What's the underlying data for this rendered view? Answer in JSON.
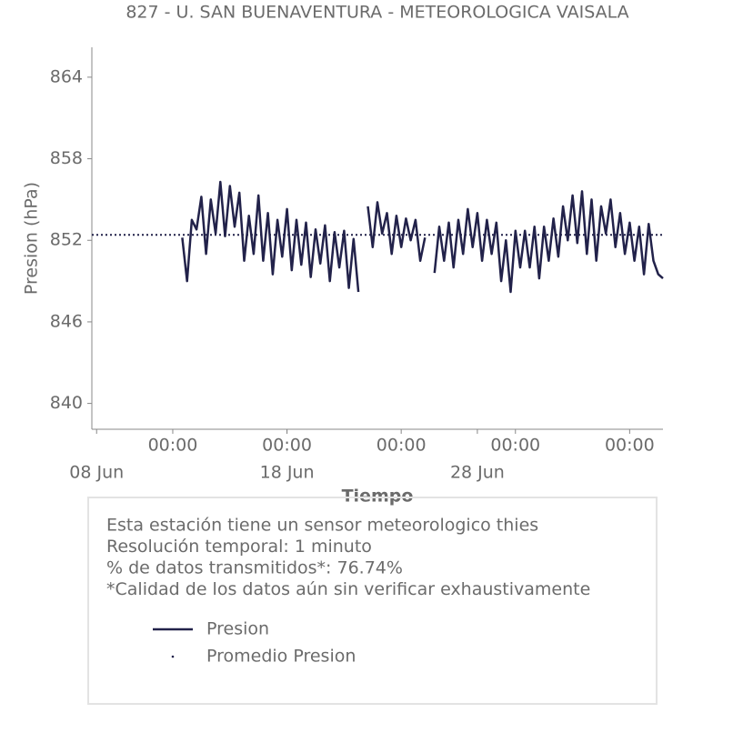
{
  "chart_data": {
    "type": "line",
    "title": "827 - U. SAN BUENAVENTURA - METEOROLOGICA VAISALA",
    "x_label": "Tiempo",
    "y_label": "Presion (hPa)",
    "xlim": [
      7.75,
      37.75
    ],
    "ylim": [
      838.1,
      866.2
    ],
    "yticks": [
      840,
      846,
      852,
      858,
      864
    ],
    "xticks": [
      {
        "value": 12,
        "label": "00:00"
      },
      {
        "value": 18,
        "label": "00:00"
      },
      {
        "value": 24,
        "label": "00:00"
      },
      {
        "value": 30,
        "label": "00:00"
      },
      {
        "value": 36,
        "label": "00:00"
      }
    ],
    "xticks_minor": [
      {
        "value": 8,
        "label": "08 Jun"
      },
      {
        "value": 18,
        "label": "18 Jun"
      },
      {
        "value": 28,
        "label": "28 Jun"
      }
    ],
    "grid": false,
    "x": [
      12.5,
      12.75,
      13,
      13.25,
      13.5,
      13.75,
      14,
      14.25,
      14.5,
      14.75,
      15,
      15.25,
      15.5,
      15.75,
      16,
      16.25,
      16.5,
      16.75,
      17,
      17.25,
      17.5,
      17.75,
      18,
      18.25,
      18.5,
      18.75,
      19,
      19.25,
      19.5,
      19.75,
      20,
      20.25,
      20.5,
      20.75,
      21,
      21.25,
      21.5,
      21.75,
      22,
      22.25,
      22.5,
      22.75,
      23,
      23.25,
      23.5,
      23.75,
      24,
      24.25,
      24.5,
      24.75,
      25,
      25.25,
      25.5,
      25.75,
      26,
      26.25,
      26.5,
      26.75,
      27,
      27.25,
      27.5,
      27.75,
      28,
      28.25,
      28.5,
      28.75,
      29,
      29.25,
      29.5,
      29.75,
      30,
      30.25,
      30.5,
      30.75,
      31,
      31.25,
      31.5,
      31.75,
      32,
      32.25,
      32.5,
      32.75,
      33,
      33.25,
      33.5,
      33.75,
      34,
      34.25,
      34.5,
      34.75,
      35,
      35.25,
      35.5,
      35.75,
      36,
      36.25,
      36.5,
      36.75,
      37,
      37.25,
      37.5,
      37.75
    ],
    "series": [
      {
        "name": "Presion",
        "color": "#22224a",
        "style": "solid",
        "values": [
          852.2,
          849,
          853.5,
          852.8,
          855.2,
          851,
          855,
          852.5,
          856.3,
          852.3,
          856,
          853,
          855.5,
          850.5,
          853.8,
          851,
          855.3,
          850.5,
          854,
          849.5,
          853.5,
          850.8,
          854.3,
          849.8,
          853.5,
          850.2,
          853.3,
          849.3,
          852.8,
          850.3,
          853.1,
          849,
          852.6,
          850,
          852.7,
          848.5,
          852.1,
          848.2,
          null,
          854.5,
          851.5,
          854.8,
          852.5,
          854,
          851,
          853.8,
          851.5,
          853.6,
          852,
          853.5,
          850.5,
          852.2,
          null,
          849.6,
          853,
          850.5,
          853.3,
          850,
          853.5,
          851,
          854.3,
          851.5,
          854,
          850.5,
          853.5,
          851,
          853.3,
          849,
          852,
          848.2,
          852.7,
          850,
          852.7,
          850,
          853,
          849.2,
          853,
          850.5,
          853.6,
          850.8,
          854.5,
          852,
          855.3,
          851.8,
          855.6,
          851,
          855,
          850.5,
          854.5,
          852.5,
          855,
          851.5,
          854,
          851,
          853.3,
          850.5,
          853,
          849.5,
          853.2,
          850.5,
          849.5,
          849.2
        ]
      },
      {
        "name": "Promedio Presion",
        "color": "#22224a",
        "style": "dotted",
        "value": 852.4
      }
    ]
  },
  "info": {
    "lines": [
      "Esta estación tiene un sensor meteorologico thies",
      "Resolución temporal: 1 minuto",
      "% de datos transmitidos*: 76.74%",
      "*Calidad de los datos aún sin verificar exhaustivamente"
    ]
  }
}
